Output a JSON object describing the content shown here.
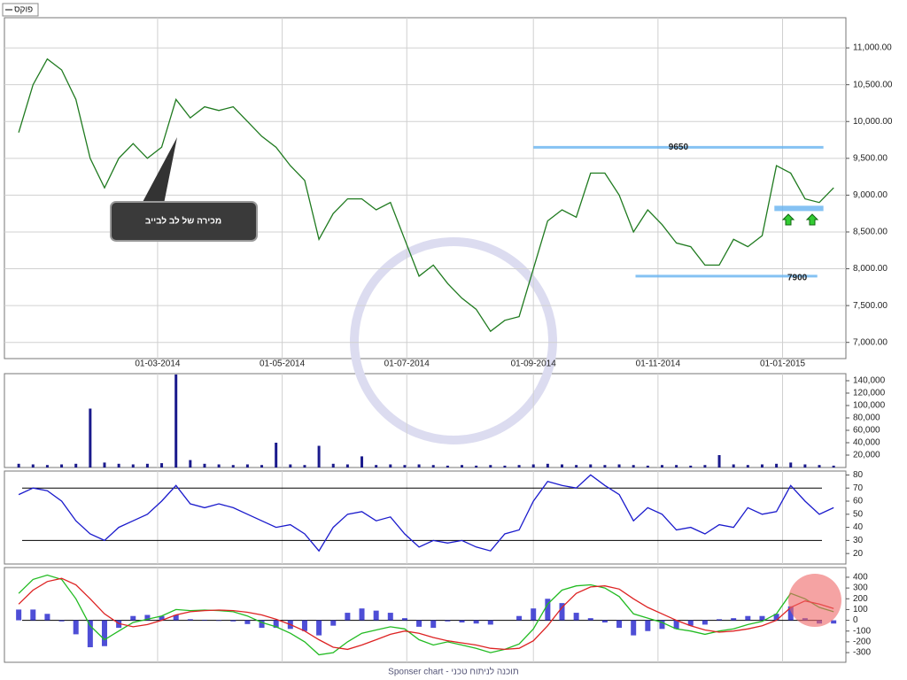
{
  "legend_label": "פוקס",
  "footer": "Sponser chart - תוכנה לניתוח טכני",
  "chart_data": [
    {
      "type": "line",
      "color": "#1f7a1f",
      "grid": true,
      "annotation": "מכירה של לב לבייב",
      "x": [
        "23-12-2013",
        "30-12-2013",
        "06-01-2014",
        "13-01-2014",
        "20-01-2014",
        "27-01-2014",
        "03-02-2014",
        "10-02-2014",
        "17-02-2014",
        "24-02-2014",
        "03-03-2014",
        "10-03-2014",
        "17-03-2014",
        "24-03-2014",
        "31-03-2014",
        "07-04-2014",
        "14-04-2014",
        "21-04-2014",
        "28-04-2014",
        "05-05-2014",
        "12-05-2014",
        "19-05-2014",
        "26-05-2014",
        "02-06-2014",
        "09-06-2014",
        "16-06-2014",
        "23-06-2014",
        "30-06-2014",
        "07-07-2014",
        "14-07-2014",
        "21-07-2014",
        "28-07-2014",
        "04-08-2014",
        "11-08-2014",
        "18-08-2014",
        "25-08-2014",
        "01-09-2014",
        "08-09-2014",
        "15-09-2014",
        "22-09-2014",
        "29-09-2014",
        "06-10-2014",
        "13-10-2014",
        "20-10-2014",
        "27-10-2014",
        "03-11-2014",
        "10-11-2014",
        "17-11-2014",
        "24-11-2014",
        "01-12-2014",
        "08-12-2014",
        "15-12-2014",
        "22-12-2014",
        "29-12-2014",
        "05-01-2015",
        "12-01-2015",
        "19-01-2015",
        "26-01-2015"
      ],
      "values": [
        9850,
        10500,
        10850,
        10700,
        10300,
        9500,
        9100,
        9500,
        9700,
        9500,
        9650,
        10300,
        10050,
        10200,
        10150,
        10200,
        10000,
        9800,
        9650,
        9400,
        9200,
        8400,
        8750,
        8950,
        8950,
        8800,
        8900,
        8400,
        7900,
        8050,
        7800,
        7600,
        7450,
        7150,
        7300,
        7350,
        8000,
        8650,
        8800,
        8700,
        9300,
        9300,
        9000,
        8500,
        8800,
        8600,
        8350,
        8300,
        8050,
        8050,
        8400,
        8300,
        8450,
        9400,
        9300,
        8950,
        8900,
        9100
      ],
      "xlim": [
        "16-12-2013",
        "01-02-2015"
      ],
      "xticks": [
        "01-03-2014",
        "01-05-2014",
        "01-07-2014",
        "01-09-2014",
        "01-11-2014",
        "01-01-2015"
      ],
      "ylim": [
        6780,
        11410
      ],
      "yticks": [
        {
          "value": 7000,
          "label": "7,000.00"
        },
        {
          "value": 7500,
          "label": "7,500.00"
        },
        {
          "value": 8000,
          "label": "8,000.00"
        },
        {
          "value": 8500,
          "label": "8,500.00"
        },
        {
          "value": 9000,
          "label": "9,000.00"
        },
        {
          "value": 9500,
          "label": "9,500.00"
        },
        {
          "value": 10000,
          "label": "10,000.00"
        },
        {
          "value": 10500,
          "label": "10,500.00"
        },
        {
          "value": 11000,
          "label": "11,000.00"
        }
      ],
      "levels": [
        {
          "value": 9650,
          "start": "01-09-2014",
          "end": "21-01-2015",
          "show_label": true
        },
        {
          "value": 7900,
          "start": "21-10-2014",
          "end": "18-01-2015",
          "show_label": true
        },
        {
          "value": 8820,
          "start": "28-12-2014",
          "end": "21-01-2015",
          "show_label": false
        }
      ]
    },
    {
      "type": "bar",
      "color": "#1a1a8c",
      "values": [
        6000,
        5000,
        4000,
        5000,
        6000,
        95000,
        8000,
        6000,
        5000,
        6000,
        7000,
        150000,
        12000,
        6000,
        5000,
        4000,
        5000,
        4000,
        40000,
        5000,
        4000,
        35000,
        6000,
        5000,
        18000,
        4000,
        5000,
        4000,
        5000,
        4000,
        3000,
        4000,
        3000,
        4000,
        3000,
        4000,
        5000,
        6000,
        5000,
        4000,
        5000,
        4000,
        5000,
        4000,
        3000,
        4000,
        4000,
        3000,
        4000,
        20000,
        5000,
        4000,
        5000,
        6000,
        8000,
        5000,
        4000,
        3000
      ],
      "ylim": [
        0,
        151400
      ],
      "yticks": [
        {
          "value": 20000,
          "label": "20,000"
        },
        {
          "value": 40000,
          "label": "40,000"
        },
        {
          "value": 60000,
          "label": "60,000"
        },
        {
          "value": 80000,
          "label": "80,000"
        },
        {
          "value": 100000,
          "label": "100,000"
        },
        {
          "value": 120000,
          "label": "120,000"
        },
        {
          "value": 140000,
          "label": "140,000"
        }
      ]
    },
    {
      "type": "line",
      "color": "#1a1acc",
      "values": [
        65,
        70,
        68,
        60,
        45,
        35,
        30,
        40,
        45,
        50,
        60,
        72,
        58,
        55,
        58,
        55,
        50,
        45,
        40,
        42,
        35,
        22,
        40,
        50,
        52,
        45,
        48,
        35,
        25,
        30,
        28,
        30,
        25,
        22,
        35,
        38,
        60,
        75,
        72,
        70,
        80,
        72,
        65,
        45,
        55,
        50,
        38,
        40,
        35,
        42,
        40,
        55,
        50,
        52,
        72,
        60,
        50,
        55
      ],
      "ylim": [
        12,
        83
      ],
      "yticks": [
        20,
        30,
        40,
        50,
        60,
        70,
        80
      ],
      "ref_lines": [
        70,
        30
      ]
    },
    {
      "type": "macd",
      "series": [
        {
          "color": "#22bb22",
          "values": [
            250,
            380,
            420,
            380,
            200,
            -50,
            -180,
            -100,
            -20,
            10,
            40,
            100,
            90,
            95,
            90,
            80,
            40,
            -20,
            -60,
            -120,
            -200,
            -320,
            -300,
            -200,
            -120,
            -90,
            -60,
            -80,
            -180,
            -230,
            -200,
            -230,
            -260,
            -300,
            -270,
            -220,
            -80,
            150,
            280,
            320,
            330,
            300,
            220,
            60,
            20,
            -20,
            -80,
            -100,
            -130,
            -100,
            -80,
            -40,
            -10,
            60,
            250,
            200,
            120,
            80
          ]
        },
        {
          "color": "#dd2222",
          "values": [
            150,
            280,
            360,
            390,
            330,
            200,
            60,
            -30,
            -60,
            -40,
            0,
            50,
            80,
            90,
            95,
            90,
            75,
            50,
            10,
            -40,
            -100,
            -180,
            -250,
            -270,
            -230,
            -180,
            -130,
            -100,
            -120,
            -160,
            -190,
            -210,
            -230,
            -260,
            -270,
            -260,
            -190,
            -50,
            120,
            250,
            310,
            320,
            290,
            200,
            120,
            60,
            0,
            -50,
            -90,
            -110,
            -100,
            -80,
            -50,
            0,
            120,
            180,
            150,
            110
          ]
        }
      ],
      "histogram": {
        "color": "#2222cc",
        "values": [
          100,
          100,
          60,
          -10,
          -130,
          -250,
          -240,
          -70,
          40,
          50,
          40,
          50,
          10,
          5,
          -5,
          -10,
          -35,
          -70,
          -70,
          -80,
          -100,
          -140,
          -50,
          70,
          110,
          90,
          70,
          20,
          -60,
          -70,
          -10,
          -20,
          -30,
          -40,
          0,
          40,
          110,
          200,
          160,
          70,
          20,
          -20,
          -70,
          -140,
          -100,
          -80,
          -80,
          -50,
          -40,
          10,
          20,
          40,
          40,
          60,
          130,
          20,
          -30,
          -30
        ]
      },
      "ylim": [
        -390,
        490
      ],
      "yticks": [
        -300,
        -200,
        -100,
        0,
        100,
        200,
        300,
        400
      ]
    }
  ]
}
